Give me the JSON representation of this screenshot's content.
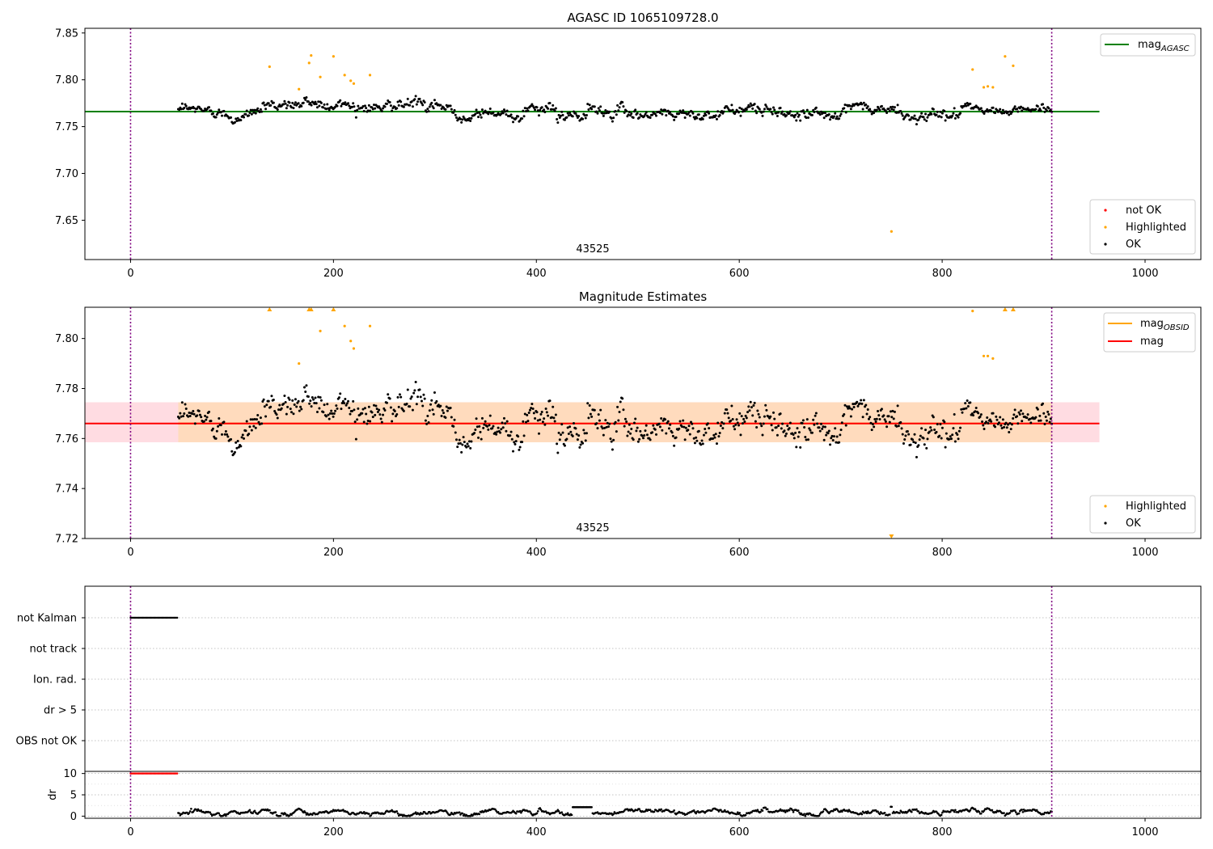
{
  "figure": {
    "colors": {
      "ok": "#000000",
      "highlighted": "#ffa500",
      "not_ok": "#ff0000",
      "agasc_line": "#008000",
      "mag_line": "#ff0000",
      "obsid_line": "#ffa500",
      "band_outer": "#ffc0cb",
      "band_inner": "#ffdab9",
      "vline": "#800080"
    }
  },
  "chart_data": [
    {
      "type": "scatter",
      "title": "AGASC ID 1065109728.0",
      "xlabel": "",
      "ylabel": "",
      "xlim": [
        -45,
        1055
      ],
      "ylim": [
        7.608,
        7.855
      ],
      "xticks": [
        "0",
        "200",
        "400",
        "600",
        "800",
        "1000"
      ],
      "yticks": [
        "7.65",
        "7.70",
        "7.75",
        "7.80",
        "7.85"
      ],
      "grid": false,
      "obsid_label": "43525",
      "obsid_label_x": 453,
      "vlines_x": [
        0,
        908
      ],
      "mag_agasc": 7.766,
      "mag_agasc_x": [
        -45,
        955
      ],
      "legend_upper": {
        "position": "upper-right",
        "entries": [
          "mag_AGASC"
        ],
        "base_label": "mag",
        "subscript_label": "AGASC"
      },
      "legend_lower": {
        "position": "lower-right",
        "entries": [
          "not OK",
          "Highlighted",
          "OK"
        ]
      },
      "series": [
        {
          "name": "OK",
          "x_range": [
            47,
            908
          ],
          "mean": 7.766,
          "walk_sigma": 0.0042,
          "noise": 0.0032,
          "count": 880
        },
        {
          "name": "Highlighted",
          "x": [
            137,
            166,
            176,
            178,
            187,
            200,
            211,
            217,
            220,
            236,
            830,
            841,
            845,
            850,
            862,
            870,
            750
          ],
          "y": [
            7.814,
            7.79,
            7.818,
            7.826,
            7.803,
            7.825,
            7.805,
            7.799,
            7.796,
            7.805,
            7.811,
            7.792,
            7.793,
            7.792,
            7.825,
            7.815,
            7.638
          ]
        },
        {
          "name": "not OK",
          "x": [],
          "y": []
        }
      ]
    },
    {
      "type": "scatter",
      "title": "Magnitude Estimates",
      "xlabel": "",
      "ylabel": "",
      "xlim": [
        -45,
        1055
      ],
      "ylim": [
        7.72,
        7.8125
      ],
      "xticks": [
        "0",
        "200",
        "400",
        "600",
        "800",
        "1000"
      ],
      "yticks": [
        "7.72",
        "7.74",
        "7.76",
        "7.78",
        "7.80"
      ],
      "grid": false,
      "obsid_label": "43525",
      "obsid_label_x": 453,
      "vlines_x": [
        0,
        908
      ],
      "mag": 7.766,
      "mag_x": [
        -45,
        955
      ],
      "band_outer": [
        7.7585,
        7.7745
      ],
      "band_outer_x": [
        -45,
        955
      ],
      "band_inner": [
        7.7585,
        7.7745
      ],
      "band_inner_x": [
        47,
        908
      ],
      "legend_upper": {
        "position": "upper-right",
        "entries": [
          "mag_OBSID",
          "mag"
        ],
        "base_label": "mag",
        "subscript_label": "OBSID",
        "mag_label": "mag"
      },
      "legend_lower": {
        "position": "lower-right",
        "entries": [
          "Highlighted",
          "OK"
        ]
      },
      "series": [
        {
          "name": "OK",
          "same_as": "panel 1 OK"
        },
        {
          "name": "Highlighted",
          "x": [
            137,
            176,
            178,
            200,
            862,
            870,
            166,
            187,
            211,
            217,
            220,
            236,
            830,
            841,
            845,
            850,
            750
          ],
          "y": [
            7.8125,
            7.8125,
            7.8125,
            7.8125,
            7.8125,
            7.8125,
            7.79,
            7.803,
            7.805,
            7.799,
            7.796,
            7.805,
            7.811,
            7.793,
            7.793,
            7.792,
            7.72
          ],
          "marker": [
            "up",
            "up",
            "up",
            "up",
            "up",
            "up",
            "dot",
            "dot",
            "dot",
            "dot",
            "dot",
            "dot",
            "dot",
            "dot",
            "dot",
            "dot",
            "down"
          ]
        }
      ]
    },
    {
      "type": "scatter",
      "title": "",
      "xlabel": "",
      "ylabel": "",
      "xlim": [
        -45,
        1055
      ],
      "categories": [
        "not Kalman",
        "not track",
        "Ion. rad.",
        "dr > 5",
        "OBS not OK"
      ],
      "grid": true,
      "vlines_x": [
        0,
        908
      ],
      "series": [
        {
          "name": "not Kalman",
          "x_range": [
            0,
            46
          ]
        }
      ]
    },
    {
      "type": "scatter",
      "title": "",
      "xlabel": "",
      "ylabel": "dr",
      "xlim": [
        -45,
        1055
      ],
      "ylim": [
        -0.5,
        10.5
      ],
      "xticks": [
        "0",
        "200",
        "400",
        "600",
        "800",
        "1000"
      ],
      "yticks": [
        "0",
        "5",
        "10"
      ],
      "grid": true,
      "vlines_x": [
        0,
        908
      ],
      "series": [
        {
          "name": "dr not OK",
          "x_range": [
            0,
            46
          ],
          "y": 10
        },
        {
          "name": "dr OK",
          "x_range": [
            47,
            908
          ],
          "mean": 0.9,
          "walk_sigma": 0.25,
          "noise": 0.12,
          "count": 880
        }
      ]
    }
  ]
}
